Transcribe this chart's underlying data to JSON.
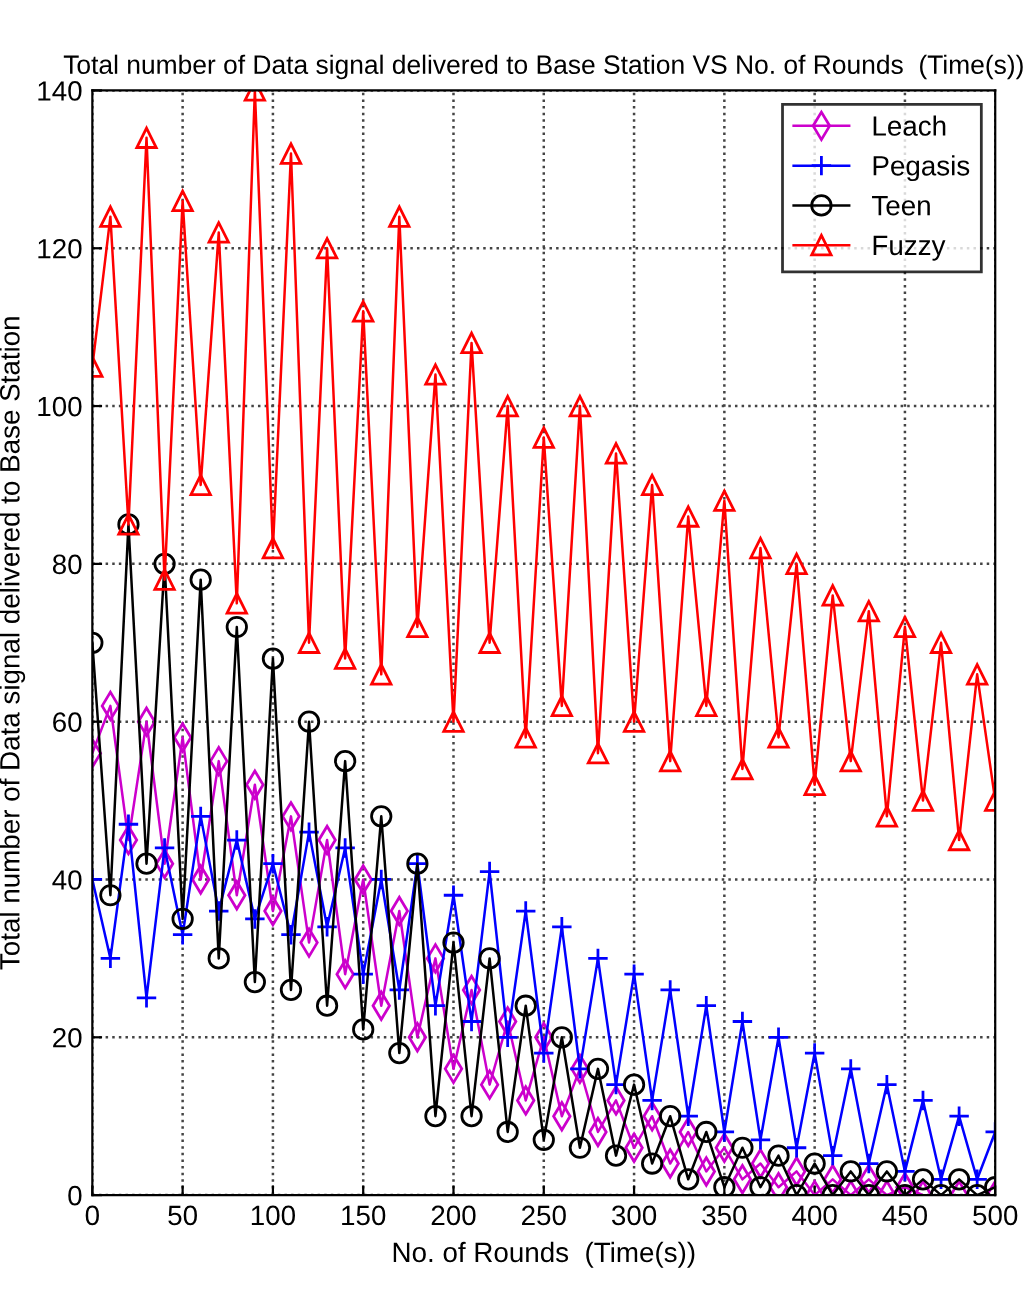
{
  "chart_data": {
    "type": "line",
    "title": "Total number of Data signal delivered to Base Station VS No. of Rounds  (Time(s))",
    "xlabel": "No. of Rounds  (Time(s))",
    "ylabel": "Total number of Data signal delivered to Base Station",
    "x": [
      0,
      10,
      20,
      30,
      40,
      50,
      60,
      70,
      80,
      90,
      100,
      110,
      120,
      130,
      140,
      150,
      160,
      170,
      180,
      190,
      200,
      210,
      220,
      230,
      240,
      250,
      260,
      270,
      280,
      290,
      300,
      310,
      320,
      330,
      340,
      350,
      360,
      370,
      380,
      390,
      400,
      410,
      420,
      430,
      440,
      450,
      460,
      470,
      480,
      490,
      500
    ],
    "series": [
      {
        "name": "Leach",
        "color": "#cc00cc",
        "marker": "diamond",
        "values": [
          56,
          62,
          45,
          60,
          42,
          58,
          40,
          55,
          38,
          52,
          36,
          48,
          32,
          45,
          28,
          40,
          24,
          36,
          20,
          30,
          16,
          26,
          14,
          22,
          12,
          20,
          10,
          16,
          8,
          12,
          6,
          10,
          4,
          8,
          3,
          6,
          2,
          4,
          1,
          3,
          0,
          2,
          0,
          2,
          0,
          1,
          0,
          null,
          0,
          null,
          0
        ]
      },
      {
        "name": "Pegasis",
        "color": "#0000ff",
        "marker": "cross",
        "values": [
          40,
          30,
          47,
          25,
          44,
          33,
          48,
          36,
          45,
          35,
          42,
          33,
          46,
          34,
          44,
          28,
          40,
          26,
          42,
          24,
          38,
          22,
          41,
          20,
          36,
          18,
          34,
          16,
          30,
          14,
          28,
          12,
          26,
          10,
          24,
          8,
          22,
          7,
          20,
          6,
          18,
          5,
          16,
          4,
          14,
          3,
          12,
          2,
          10,
          2,
          8
        ]
      },
      {
        "name": "Teen",
        "color": "#000000",
        "marker": "circle",
        "values": [
          70,
          38,
          85,
          42,
          80,
          35,
          78,
          30,
          72,
          27,
          68,
          26,
          60,
          24,
          55,
          21,
          48,
          18,
          42,
          10,
          32,
          10,
          30,
          8,
          24,
          7,
          20,
          6,
          16,
          5,
          14,
          4,
          10,
          2,
          8,
          1,
          6,
          1,
          5,
          0,
          4,
          0,
          3,
          0,
          3,
          0,
          2,
          0,
          2,
          0,
          1
        ]
      },
      {
        "name": "Fuzzy",
        "color": "#ff0000",
        "marker": "triangle",
        "values": [
          105,
          124,
          85,
          134,
          78,
          126,
          90,
          122,
          75,
          140,
          82,
          132,
          70,
          120,
          68,
          112,
          66,
          124,
          72,
          104,
          60,
          108,
          70,
          100,
          58,
          96,
          62,
          100,
          56,
          94,
          60,
          90,
          55,
          86,
          62,
          88,
          54,
          82,
          58,
          80,
          52,
          76,
          55,
          74,
          48,
          72,
          50,
          70,
          45,
          66,
          50
        ]
      }
    ],
    "xlim": [
      0,
      500
    ],
    "xticks": [
      0,
      50,
      100,
      150,
      200,
      250,
      300,
      350,
      400,
      450,
      500
    ],
    "ylim": [
      0,
      140
    ],
    "yticks": [
      0,
      20,
      40,
      60,
      80,
      100,
      120,
      140
    ],
    "grid": true,
    "legend": "top right",
    "line_style": "solid"
  }
}
